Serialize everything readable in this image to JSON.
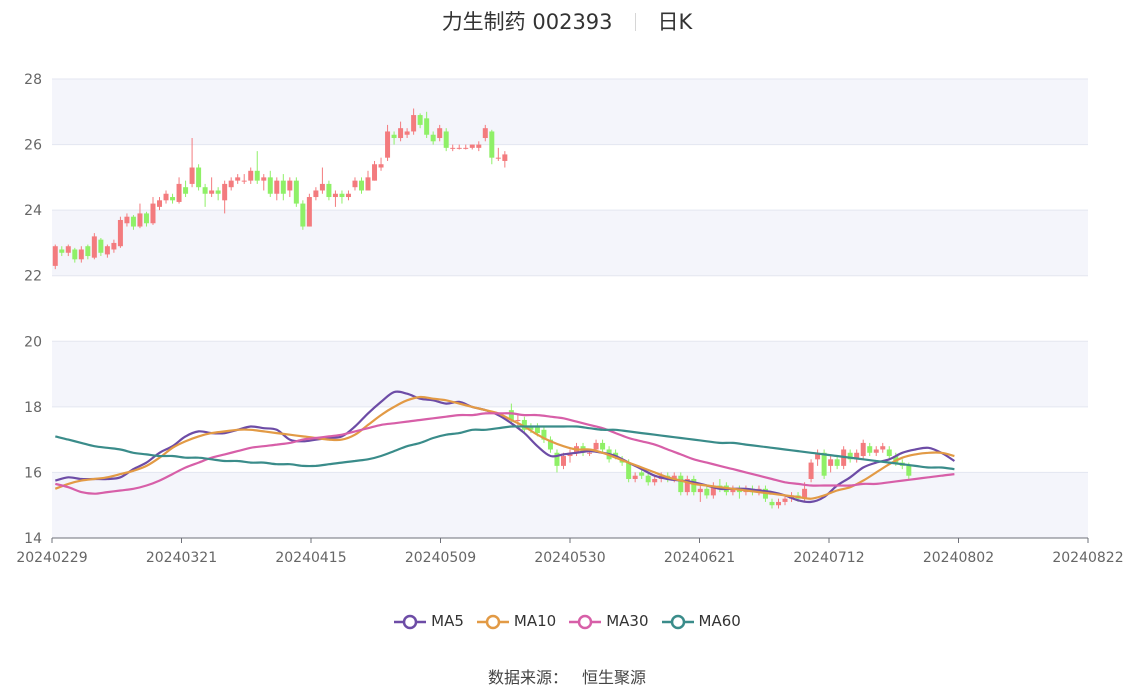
{
  "title": {
    "name": "力生制药 002393",
    "period": "日K"
  },
  "source": {
    "label": "数据来源：",
    "value": "恒生聚源"
  },
  "colors": {
    "up": "#f37b7e",
    "down": "#8ff067",
    "band": "#f4f5fb",
    "grid": "#e3e6f0",
    "MA5": "#6d4ca6",
    "MA10": "#e29a45",
    "MA30": "#d75fa8",
    "MA60": "#3a8c8a"
  },
  "chart_data": {
    "type": "candlestick",
    "ylim": [
      14,
      28
    ],
    "yticks": [
      14,
      16,
      18,
      20,
      22,
      24,
      26,
      28
    ],
    "xticks": [
      "20240229",
      "20240321",
      "20240415",
      "20240509",
      "20240530",
      "20240621",
      "20240712",
      "20240802",
      "20240822"
    ],
    "legend": [
      "MA5",
      "MA10",
      "MA30",
      "MA60"
    ],
    "candles": [
      [
        22.3,
        22.9,
        22.95,
        22.2
      ],
      [
        22.8,
        22.7,
        22.9,
        22.6
      ],
      [
        22.7,
        22.9,
        22.95,
        22.6
      ],
      [
        22.8,
        22.5,
        22.85,
        22.4
      ],
      [
        22.5,
        22.8,
        22.9,
        22.4
      ],
      [
        22.9,
        22.6,
        22.95,
        22.5
      ],
      [
        22.55,
        23.2,
        23.3,
        22.5
      ],
      [
        23.1,
        22.7,
        23.15,
        22.6
      ],
      [
        22.65,
        22.9,
        22.95,
        22.55
      ],
      [
        22.8,
        23.0,
        23.1,
        22.7
      ],
      [
        22.9,
        23.7,
        23.8,
        22.85
      ],
      [
        23.6,
        23.8,
        23.9,
        23.5
      ],
      [
        23.8,
        23.5,
        23.85,
        23.4
      ],
      [
        23.5,
        23.9,
        24.2,
        23.45
      ],
      [
        23.9,
        23.6,
        23.95,
        23.5
      ],
      [
        23.6,
        24.2,
        24.4,
        23.55
      ],
      [
        24.1,
        24.3,
        24.4,
        24.0
      ],
      [
        24.3,
        24.5,
        24.6,
        24.2
      ],
      [
        24.4,
        24.3,
        24.5,
        24.2
      ],
      [
        24.25,
        24.8,
        25.0,
        24.2
      ],
      [
        24.7,
        24.5,
        24.9,
        24.4
      ],
      [
        24.8,
        25.3,
        26.2,
        24.7
      ],
      [
        25.3,
        24.7,
        25.4,
        24.6
      ],
      [
        24.7,
        24.5,
        24.8,
        24.1
      ],
      [
        24.5,
        24.6,
        25.0,
        24.4
      ],
      [
        24.6,
        24.5,
        24.7,
        24.3
      ],
      [
        24.3,
        24.8,
        24.9,
        23.9
      ],
      [
        24.7,
        24.9,
        25.0,
        24.6
      ],
      [
        24.9,
        25.0,
        25.1,
        24.8
      ],
      [
        24.9,
        24.9,
        25.1,
        24.8
      ],
      [
        24.9,
        25.2,
        25.3,
        24.8
      ],
      [
        25.2,
        24.9,
        25.8,
        24.8
      ],
      [
        24.9,
        25.0,
        25.1,
        24.6
      ],
      [
        25.0,
        24.5,
        25.2,
        24.4
      ],
      [
        24.5,
        24.9,
        25.0,
        24.3
      ],
      [
        24.9,
        24.5,
        25.1,
        24.3
      ],
      [
        24.6,
        24.9,
        25.0,
        24.4
      ],
      [
        24.9,
        24.2,
        25.0,
        24.1
      ],
      [
        24.2,
        23.5,
        24.3,
        23.4
      ],
      [
        23.5,
        24.4,
        24.5,
        23.5
      ],
      [
        24.4,
        24.6,
        24.7,
        24.3
      ],
      [
        24.6,
        24.8,
        25.3,
        24.5
      ],
      [
        24.8,
        24.4,
        24.9,
        24.3
      ],
      [
        24.4,
        24.5,
        24.6,
        24.1
      ],
      [
        24.5,
        24.4,
        24.6,
        24.2
      ],
      [
        24.4,
        24.5,
        24.6,
        24.3
      ],
      [
        24.7,
        24.9,
        25.0,
        24.6
      ],
      [
        24.9,
        24.6,
        25.0,
        24.5
      ],
      [
        24.6,
        25.0,
        25.2,
        24.6
      ],
      [
        24.9,
        25.4,
        25.5,
        24.9
      ],
      [
        25.3,
        25.4,
        25.6,
        25.2
      ],
      [
        25.6,
        26.4,
        26.6,
        25.5
      ],
      [
        26.3,
        26.2,
        26.4,
        26.0
      ],
      [
        26.2,
        26.5,
        26.7,
        26.1
      ],
      [
        26.3,
        26.4,
        26.5,
        26.2
      ],
      [
        26.4,
        26.9,
        27.1,
        26.3
      ],
      [
        26.9,
        26.6,
        26.95,
        26.5
      ],
      [
        26.8,
        26.3,
        27.0,
        26.2
      ],
      [
        26.3,
        26.1,
        26.4,
        26.0
      ],
      [
        26.2,
        26.5,
        26.6,
        26.1
      ],
      [
        26.4,
        25.9,
        26.5,
        25.8
      ],
      [
        25.9,
        25.9,
        26.0,
        25.8
      ],
      [
        25.9,
        25.9,
        26.0,
        25.85
      ],
      [
        25.9,
        25.9,
        26.0,
        25.85
      ],
      [
        25.9,
        26.0,
        26.0,
        25.85
      ],
      [
        25.9,
        26.0,
        26.1,
        25.8
      ],
      [
        26.2,
        26.5,
        26.6,
        26.1
      ],
      [
        26.4,
        25.6,
        26.45,
        25.4
      ],
      [
        25.6,
        25.6,
        25.9,
        25.5
      ],
      [
        25.5,
        25.7,
        25.8,
        25.3
      ],
      [
        17.9,
        17.6,
        18.1,
        17.5
      ],
      [
        17.6,
        17.6,
        17.8,
        17.4
      ],
      [
        17.6,
        17.3,
        17.7,
        17.2
      ],
      [
        17.4,
        17.3,
        17.5,
        17.2
      ],
      [
        17.4,
        17.2,
        17.5,
        17.1
      ],
      [
        17.3,
        17.0,
        17.4,
        16.9
      ],
      [
        17.0,
        16.7,
        17.1,
        16.6
      ],
      [
        16.6,
        16.2,
        16.7,
        16.0
      ],
      [
        16.2,
        16.5,
        16.6,
        16.1
      ],
      [
        16.5,
        16.6,
        16.7,
        16.3
      ],
      [
        16.6,
        16.8,
        16.9,
        16.5
      ],
      [
        16.8,
        16.6,
        16.9,
        16.5
      ],
      [
        16.6,
        16.6,
        16.7,
        16.5
      ],
      [
        16.7,
        16.9,
        17.0,
        16.6
      ],
      [
        16.9,
        16.7,
        17.0,
        16.6
      ],
      [
        16.7,
        16.4,
        16.8,
        16.3
      ],
      [
        16.6,
        16.5,
        16.7,
        16.4
      ],
      [
        16.4,
        16.3,
        16.5,
        16.2
      ],
      [
        16.3,
        15.8,
        16.4,
        15.7
      ],
      [
        15.8,
        15.9,
        16.0,
        15.7
      ],
      [
        16.0,
        15.9,
        16.1,
        15.8
      ],
      [
        15.9,
        15.7,
        16.0,
        15.6
      ],
      [
        15.7,
        15.8,
        15.9,
        15.6
      ],
      [
        15.8,
        15.9,
        16.0,
        15.7
      ],
      [
        15.9,
        15.8,
        16.0,
        15.7
      ],
      [
        15.8,
        15.9,
        16.0,
        15.7
      ],
      [
        15.9,
        15.4,
        16.0,
        15.3
      ],
      [
        15.4,
        15.8,
        15.9,
        15.3
      ],
      [
        15.8,
        15.4,
        15.9,
        15.3
      ],
      [
        15.4,
        15.5,
        15.6,
        15.1
      ],
      [
        15.5,
        15.3,
        15.6,
        15.2
      ],
      [
        15.3,
        15.6,
        15.7,
        15.2
      ],
      [
        15.6,
        15.5,
        15.8,
        15.4
      ],
      [
        15.6,
        15.4,
        15.7,
        15.3
      ],
      [
        15.4,
        15.5,
        15.6,
        15.3
      ],
      [
        15.5,
        15.4,
        15.6,
        15.2
      ],
      [
        15.4,
        15.5,
        15.6,
        15.3
      ],
      [
        15.5,
        15.4,
        15.6,
        15.3
      ],
      [
        15.4,
        15.5,
        15.6,
        15.3
      ],
      [
        15.5,
        15.2,
        15.6,
        15.1
      ],
      [
        15.1,
        15.0,
        15.2,
        14.9
      ],
      [
        15.0,
        15.1,
        15.2,
        14.9
      ],
      [
        15.1,
        15.2,
        15.3,
        15.0
      ],
      [
        15.2,
        15.3,
        15.4,
        15.1
      ],
      [
        15.3,
        15.2,
        15.4,
        15.1
      ],
      [
        15.2,
        15.5,
        15.7,
        15.1
      ],
      [
        15.8,
        16.3,
        16.4,
        15.7
      ],
      [
        16.4,
        16.6,
        16.7,
        16.2
      ],
      [
        16.6,
        15.9,
        16.7,
        15.8
      ],
      [
        16.2,
        16.4,
        16.5,
        16.0
      ],
      [
        16.4,
        16.2,
        16.5,
        16.1
      ],
      [
        16.2,
        16.7,
        16.8,
        16.1
      ],
      [
        16.6,
        16.4,
        16.7,
        16.3
      ],
      [
        16.4,
        16.6,
        16.7,
        16.3
      ],
      [
        16.5,
        16.9,
        17.0,
        16.4
      ],
      [
        16.8,
        16.6,
        16.9,
        16.5
      ],
      [
        16.6,
        16.7,
        16.8,
        16.5
      ],
      [
        16.7,
        16.8,
        16.9,
        16.6
      ],
      [
        16.7,
        16.5,
        16.8,
        16.4
      ],
      [
        16.5,
        16.3,
        16.6,
        16.2
      ],
      [
        16.3,
        16.2,
        16.4,
        16.1
      ],
      [
        16.2,
        15.9,
        16.3,
        15.8
      ]
    ],
    "series": [
      {
        "name": "MA5",
        "x": [
          0,
          2,
          4,
          6,
          8,
          10,
          12,
          14,
          16,
          18,
          20,
          22,
          24,
          26,
          28,
          30,
          32,
          34,
          36,
          38,
          40,
          42,
          44,
          46,
          48,
          50,
          52,
          54,
          56,
          58,
          60,
          62,
          64,
          66,
          68,
          70,
          72,
          74,
          76,
          78,
          80,
          82,
          84,
          86,
          88,
          90,
          92,
          94,
          96,
          98,
          100,
          102,
          104,
          106,
          108,
          110,
          112,
          114,
          116,
          118,
          120,
          122,
          124,
          126,
          128,
          130,
          132,
          134,
          136,
          138
        ],
        "y": [
          15.75,
          15.85,
          15.8,
          15.8,
          15.8,
          15.85,
          16.1,
          16.3,
          16.6,
          16.8,
          17.1,
          17.25,
          17.2,
          17.2,
          17.3,
          17.4,
          17.35,
          17.3,
          17.0,
          16.95,
          17.0,
          17.05,
          17.1,
          17.4,
          17.8,
          18.15,
          18.45,
          18.4,
          18.25,
          18.2,
          18.1,
          18.15,
          18.0,
          17.9,
          17.75,
          17.5,
          17.2,
          16.8,
          16.5,
          16.55,
          16.6,
          16.65,
          16.6,
          16.5,
          16.3,
          16.1,
          15.9,
          15.8,
          15.75,
          15.7,
          15.6,
          15.5,
          15.5,
          15.5,
          15.45,
          15.4,
          15.3,
          15.15,
          15.1,
          15.25,
          15.6,
          15.85,
          16.15,
          16.3,
          16.4,
          16.6,
          16.7,
          16.75,
          16.6,
          16.35
        ]
      },
      {
        "name": "MA10",
        "x": [
          0,
          2,
          4,
          6,
          8,
          10,
          12,
          14,
          16,
          18,
          20,
          22,
          24,
          26,
          28,
          30,
          32,
          34,
          36,
          38,
          40,
          42,
          44,
          46,
          48,
          50,
          52,
          54,
          56,
          58,
          60,
          62,
          64,
          66,
          68,
          70,
          72,
          74,
          76,
          78,
          80,
          82,
          84,
          86,
          88,
          90,
          92,
          94,
          96,
          98,
          100,
          102,
          104,
          106,
          108,
          110,
          112,
          114,
          116,
          118,
          120,
          122,
          124,
          126,
          128,
          130,
          132,
          134,
          136,
          138
        ],
        "y": [
          15.5,
          15.65,
          15.75,
          15.8,
          15.85,
          15.95,
          16.05,
          16.2,
          16.45,
          16.75,
          16.95,
          17.1,
          17.2,
          17.25,
          17.3,
          17.3,
          17.25,
          17.2,
          17.15,
          17.1,
          17.05,
          17.0,
          17.0,
          17.15,
          17.45,
          17.75,
          18.0,
          18.2,
          18.3,
          18.25,
          18.2,
          18.1,
          18.0,
          17.9,
          17.8,
          17.6,
          17.4,
          17.15,
          16.95,
          16.8,
          16.7,
          16.7,
          16.6,
          16.45,
          16.3,
          16.15,
          16.0,
          15.85,
          15.75,
          15.65,
          15.6,
          15.55,
          15.5,
          15.45,
          15.4,
          15.35,
          15.3,
          15.25,
          15.2,
          15.3,
          15.45,
          15.55,
          15.75,
          16.0,
          16.25,
          16.45,
          16.55,
          16.6,
          16.6,
          16.5
        ]
      },
      {
        "name": "MA30",
        "x": [
          0,
          2,
          4,
          6,
          8,
          10,
          12,
          14,
          16,
          18,
          20,
          22,
          24,
          26,
          28,
          30,
          32,
          34,
          36,
          38,
          40,
          42,
          44,
          46,
          48,
          50,
          52,
          54,
          56,
          58,
          60,
          62,
          64,
          66,
          68,
          70,
          72,
          74,
          76,
          78,
          80,
          82,
          84,
          86,
          88,
          90,
          92,
          94,
          96,
          98,
          100,
          102,
          104,
          106,
          108,
          110,
          112,
          114,
          116,
          118,
          120,
          122,
          124,
          126,
          128,
          130,
          132,
          134,
          136,
          138
        ],
        "y": [
          15.65,
          15.55,
          15.4,
          15.35,
          15.4,
          15.45,
          15.5,
          15.6,
          15.75,
          15.95,
          16.15,
          16.3,
          16.45,
          16.55,
          16.65,
          16.75,
          16.8,
          16.85,
          16.9,
          17.0,
          17.05,
          17.1,
          17.15,
          17.25,
          17.35,
          17.45,
          17.5,
          17.55,
          17.6,
          17.65,
          17.7,
          17.75,
          17.75,
          17.8,
          17.8,
          17.8,
          17.75,
          17.75,
          17.7,
          17.65,
          17.55,
          17.45,
          17.35,
          17.2,
          17.05,
          16.95,
          16.85,
          16.7,
          16.55,
          16.4,
          16.3,
          16.2,
          16.1,
          16.0,
          15.9,
          15.8,
          15.7,
          15.65,
          15.6,
          15.6,
          15.6,
          15.6,
          15.65,
          15.65,
          15.7,
          15.75,
          15.8,
          15.85,
          15.9,
          15.95
        ]
      },
      {
        "name": "MA60",
        "x": [
          0,
          2,
          4,
          6,
          8,
          10,
          12,
          14,
          16,
          18,
          20,
          22,
          24,
          26,
          28,
          30,
          32,
          34,
          36,
          38,
          40,
          42,
          44,
          46,
          48,
          50,
          52,
          54,
          56,
          58,
          60,
          62,
          64,
          66,
          68,
          70,
          72,
          74,
          76,
          78,
          80,
          82,
          84,
          86,
          88,
          90,
          92,
          94,
          96,
          98,
          100,
          102,
          104,
          106,
          108,
          110,
          112,
          114,
          116,
          118,
          120,
          122,
          124,
          126,
          128,
          130,
          132,
          134,
          136,
          138
        ],
        "y": [
          17.1,
          17.0,
          16.9,
          16.8,
          16.75,
          16.7,
          16.6,
          16.55,
          16.5,
          16.5,
          16.45,
          16.45,
          16.4,
          16.35,
          16.35,
          16.3,
          16.3,
          16.25,
          16.25,
          16.2,
          16.2,
          16.25,
          16.3,
          16.35,
          16.4,
          16.5,
          16.65,
          16.8,
          16.9,
          17.05,
          17.15,
          17.2,
          17.3,
          17.3,
          17.35,
          17.4,
          17.4,
          17.4,
          17.4,
          17.4,
          17.4,
          17.35,
          17.3,
          17.3,
          17.25,
          17.2,
          17.15,
          17.1,
          17.05,
          17.0,
          16.95,
          16.9,
          16.9,
          16.85,
          16.8,
          16.75,
          16.7,
          16.65,
          16.6,
          16.55,
          16.5,
          16.45,
          16.4,
          16.35,
          16.3,
          16.25,
          16.2,
          16.15,
          16.15,
          16.1
        ]
      }
    ]
  }
}
